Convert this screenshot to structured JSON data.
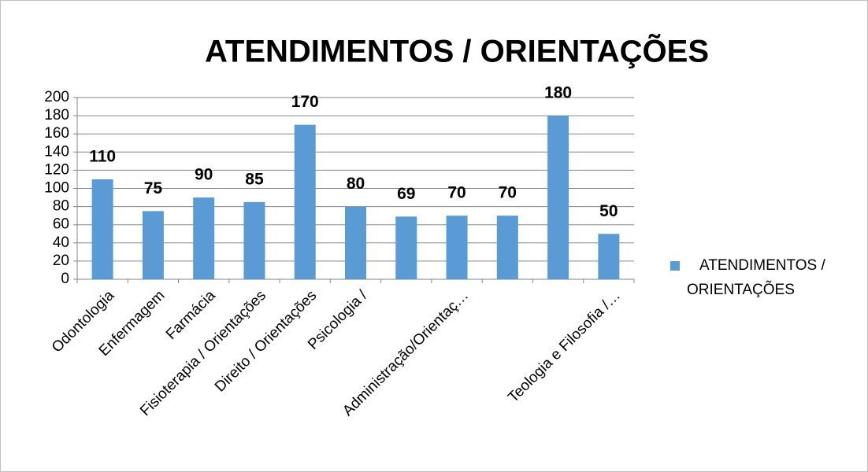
{
  "chart_data": {
    "type": "bar",
    "title": "ATENDIMENTOS / ORIENTAÇÕES",
    "categories": [
      "Odontologia",
      "Enfermagem",
      "Farmácia",
      "Fisioterapia / Orientações",
      "Direito / Orientações",
      "Psicologia /",
      null,
      "Administração/Orientaç…",
      null,
      null,
      "Teologia e Filosofia /…"
    ],
    "series": [
      {
        "name": "ATENDIMENTOS / ORIENTAÇÕES",
        "color": "#5b9bd5",
        "values": [
          110,
          75,
          90,
          85,
          170,
          80,
          69,
          70,
          70,
          180,
          50
        ]
      }
    ],
    "ylim": [
      0,
      200
    ],
    "yticks": [
      0,
      20,
      40,
      60,
      80,
      100,
      120,
      140,
      160,
      180,
      200
    ],
    "grid": true,
    "legend": "right"
  }
}
